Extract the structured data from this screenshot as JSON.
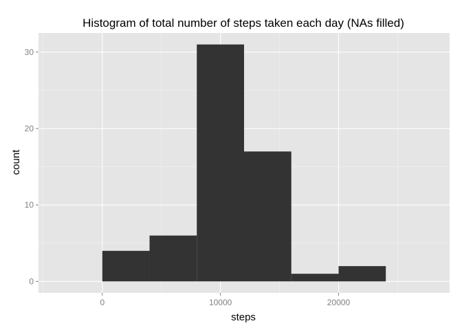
{
  "chart_data": {
    "type": "bar",
    "title": "Histogram of total number of steps taken each day (NAs filled)",
    "xlabel": "steps",
    "ylabel": "count",
    "bins": [
      {
        "start": 0,
        "end": 4000,
        "count": 4
      },
      {
        "start": 4000,
        "end": 8000,
        "count": 6
      },
      {
        "start": 8000,
        "end": 12000,
        "count": 31
      },
      {
        "start": 12000,
        "end": 16000,
        "count": 17
      },
      {
        "start": 16000,
        "end": 20000,
        "count": 1
      },
      {
        "start": 20000,
        "end": 24000,
        "count": 2
      }
    ],
    "xlim": [
      -5400,
      29400
    ],
    "ylim": [
      -1.5,
      32.5
    ],
    "x_ticks": [
      0,
      10000,
      20000
    ],
    "x_tick_labels": [
      "0",
      "10000",
      "20000"
    ],
    "y_ticks": [
      0,
      10,
      20,
      30
    ],
    "y_tick_labels": [
      "0",
      "10",
      "20",
      "30"
    ],
    "grid": true,
    "legend": "none",
    "colors": {
      "panel": "#e5e5e5",
      "grid_major": "#ffffff",
      "grid_minor": "#f2f2f2",
      "bar": "#333333",
      "tick_text": "#7f7f7f"
    }
  }
}
